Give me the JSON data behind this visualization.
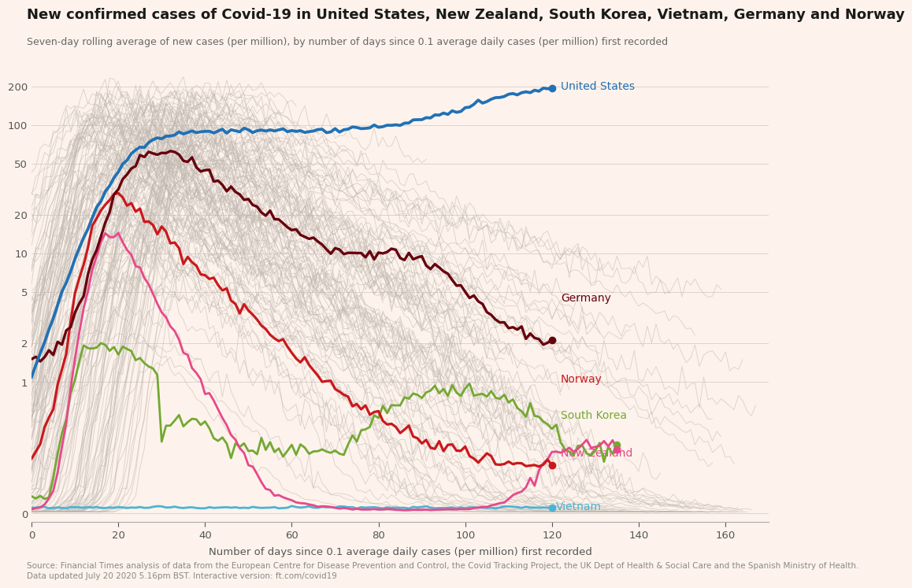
{
  "title": "New confirmed cases of Covid-19 in United States, New Zealand, South Korea, Vietnam, Germany and Norway",
  "subtitle": "Seven-day rolling average of new cases (per million), by number of days since 0.1 average daily cases (per million) first recorded",
  "xlabel": "Number of days since 0.1 average daily cases (per million) first recorded",
  "source": "Source: Financial Times analysis of data from the European Centre for Disease Prevention and Control, the Covid Tracking Project, the UK Dept of Health & Social Care and the Spanish Ministry of Health.\nData updated July 20 2020 5.16pm BST. Interactive version: ft.com/covid19",
  "background_color": "#fdf3ec",
  "yticks": [
    0,
    1,
    2,
    5,
    10,
    20,
    50,
    100,
    200
  ],
  "xticks": [
    0,
    20,
    40,
    60,
    80,
    100,
    120,
    140,
    160
  ],
  "xlim": [
    0,
    170
  ],
  "countries": {
    "United States": {
      "color": "#2171b5"
    },
    "Germany": {
      "color": "#67000d"
    },
    "Norway": {
      "color": "#cb181d"
    },
    "South Korea": {
      "color": "#74a832"
    },
    "New Zealand": {
      "color": "#e8488a"
    },
    "Vietnam": {
      "color": "#4eb3d3"
    }
  },
  "grey_line_color": "#c0b8b0",
  "grey_line_alpha": 0.55,
  "grey_line_lw": 0.65
}
